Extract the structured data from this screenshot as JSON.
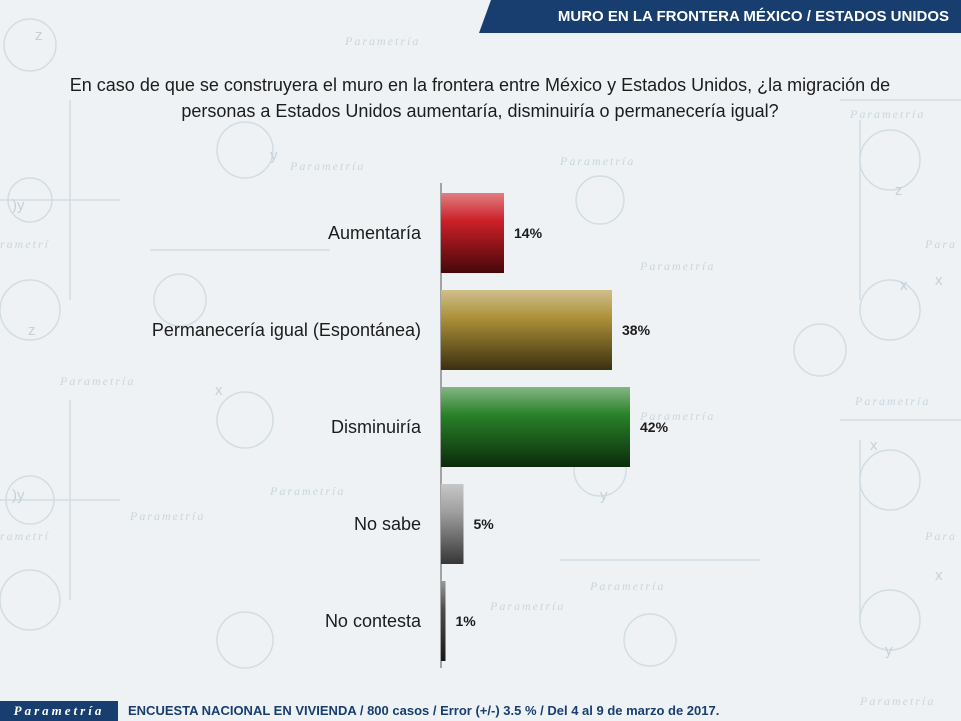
{
  "header": {
    "title": "MURO EN LA FRONTERA MÉXICO / ESTADOS UNIDOS"
  },
  "question": {
    "line1": "En caso de que se construyera el muro en la frontera entre México y Estados Unidos, ¿la migración de",
    "line2": "personas a Estados Unidos aumentaría, disminuiría o permanecería igual?"
  },
  "chart_data": {
    "type": "bar",
    "orientation": "horizontal",
    "categories": [
      "Aumentaría",
      "Permanecería igual (Espontánea)",
      "Disminuiría",
      "No sabe",
      "No contesta"
    ],
    "values": [
      14,
      38,
      42,
      5,
      1
    ],
    "value_labels": [
      "14%",
      "38%",
      "42%",
      "5%",
      "1%"
    ],
    "colors": [
      "#c8141c",
      "#a88a2e",
      "#1e7a1e",
      "#9a9a9a",
      "#444444"
    ],
    "xlim": [
      0,
      100
    ],
    "unit": "%"
  },
  "footer": {
    "logo": "Parametría",
    "text": "ENCUESTA NACIONAL EN VIVIENDA / 800 casos / Error (+/-) 3.5 % / Del 4 al 9 de marzo de 2017."
  }
}
